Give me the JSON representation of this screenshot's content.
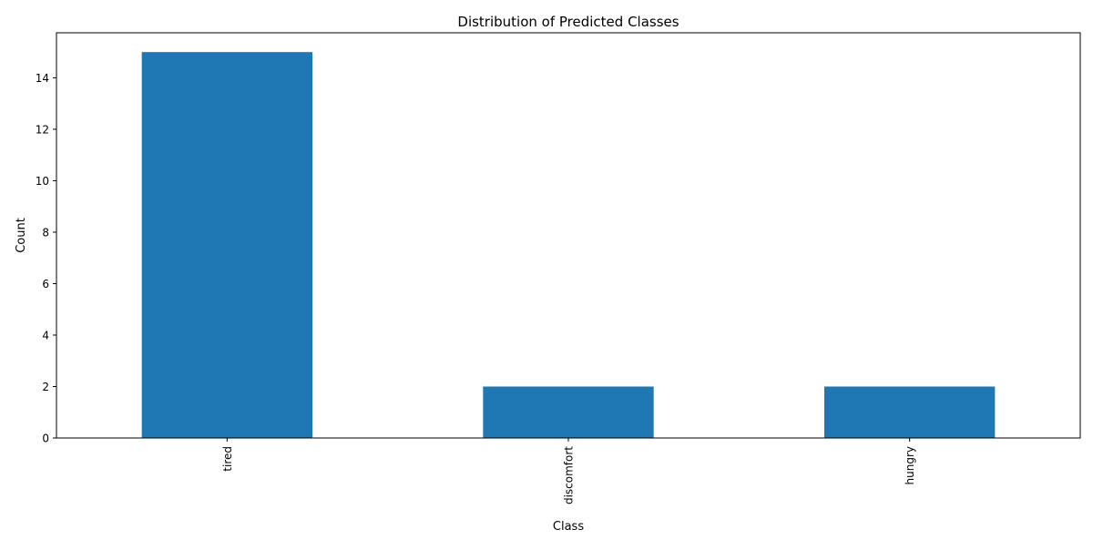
{
  "chart_data": {
    "type": "bar",
    "title": "Distribution of Predicted Classes",
    "xlabel": "Class",
    "ylabel": "Count",
    "categories": [
      "tired",
      "discomfort",
      "hungry"
    ],
    "values": [
      15,
      2,
      2
    ],
    "ylim": [
      0,
      15.75
    ],
    "yticks": [
      0,
      2,
      4,
      6,
      8,
      10,
      12,
      14
    ],
    "grid": false,
    "legend": false,
    "bar_color": "#1f77b4",
    "x_tick_rotation": 90
  }
}
